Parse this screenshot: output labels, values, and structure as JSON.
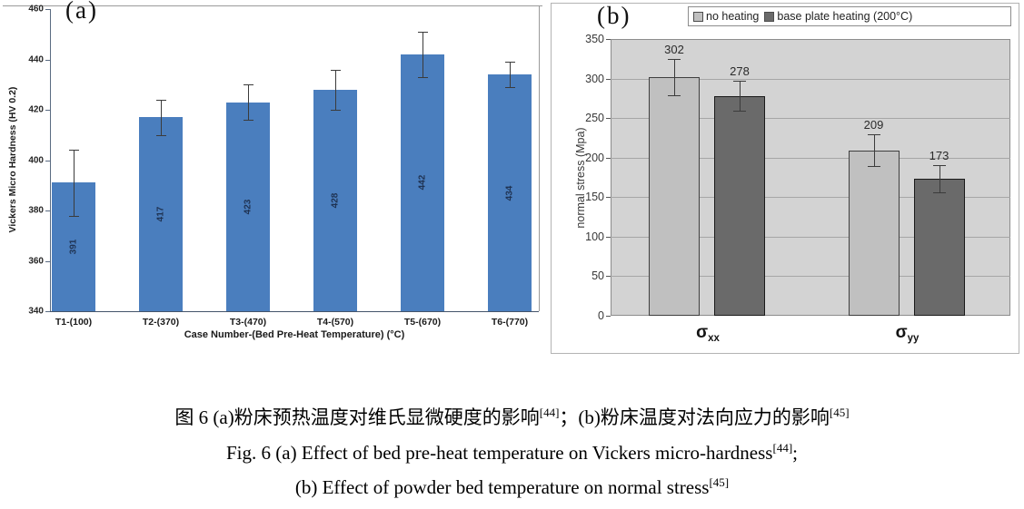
{
  "chart_data": [
    {
      "id": "vickers-hardness",
      "type": "bar",
      "panel_label": "(a)",
      "categories": [
        "T1-(100)",
        "T2-(370)",
        "T3-(470)",
        "T4-(570)",
        "T5-(670)",
        "T6-(770)"
      ],
      "values": [
        391,
        417,
        423,
        428,
        442,
        434
      ],
      "errors": [
        13,
        7,
        7,
        8,
        9,
        5
      ],
      "value_labels": [
        "391",
        "417",
        "423",
        "428",
        "442",
        "434"
      ],
      "bar_color": "#4a7ebe",
      "xlabel": "Case Number-(Bed Pre-Heat Temperature) (°C)",
      "ylabel": "Vickers Micro Hardness (HV 0.2)",
      "ylim": [
        340,
        460
      ],
      "ytick_step": 20,
      "grid": false,
      "legend_position": "none"
    },
    {
      "id": "normal-stress",
      "type": "bar",
      "panel_label": "(b)",
      "categories": [
        {
          "base": "σ",
          "sub": "xx"
        },
        {
          "base": "σ",
          "sub": "yy"
        }
      ],
      "series": [
        {
          "name": "no heating",
          "color": "#c0c0c0",
          "border": "#3f3f3f",
          "values": [
            302,
            209
          ],
          "errors": [
            23,
            20
          ]
        },
        {
          "name": "base plate heating (200°C)",
          "color": "#6a6a6a",
          "border": "#1a1a1a",
          "values": [
            278,
            173
          ],
          "errors": [
            19,
            17
          ]
        }
      ],
      "xlabel": "",
      "ylabel": "normal stress (Mpa)",
      "ylim": [
        0,
        350
      ],
      "ytick_step": 50,
      "grid": true,
      "plot_background": "#d3d3d3",
      "grid_color": "#a6a6a6",
      "legend_position": "top"
    }
  ],
  "caption": {
    "zh_part1": "图 6 (a)粉床预热温度对维氏显微硬度的影响",
    "zh_ref1": "[44]",
    "zh_part2": "；(b)粉床温度对法向应力的影响",
    "zh_ref2": "[45]",
    "en1_text": "Fig. 6 (a) Effect of bed pre-heat temperature on Vickers micro-hardness",
    "en1_ref": "[44]",
    "en1_tail": ";",
    "en2_text": "(b) Effect of powder bed temperature on normal stress",
    "en2_ref": "[45]"
  }
}
